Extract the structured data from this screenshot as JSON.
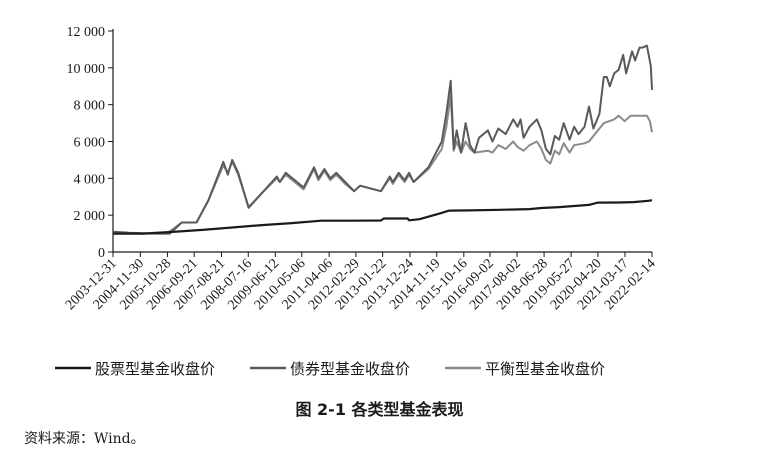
{
  "caption": "图 2-1   各类型基金表现",
  "source": "资料来源：Wind。",
  "chart_data": {
    "type": "line",
    "title": "",
    "xlabel": "",
    "ylabel": "",
    "ylim": [
      0,
      12000
    ],
    "yticks": [
      0,
      2000,
      4000,
      6000,
      8000,
      10000,
      12000
    ],
    "ytick_labels": [
      "0",
      "2 000",
      "4 000",
      "6 000",
      "8 000",
      "10 000",
      "12 000"
    ],
    "x_range": [
      2003.99,
      2022.12
    ],
    "xticks": [
      {
        "label": "2003-12-31",
        "x": 2003.99
      },
      {
        "label": "2004-11-30",
        "x": 2004.91
      },
      {
        "label": "2005-10-28",
        "x": 2005.82
      },
      {
        "label": "2006-09-21",
        "x": 2006.72
      },
      {
        "label": "2007-08-21",
        "x": 2007.64
      },
      {
        "label": "2008-07-16",
        "x": 2008.54
      },
      {
        "label": "2009-06-12",
        "x": 2009.45
      },
      {
        "label": "2010-05-06",
        "x": 2010.34
      },
      {
        "label": "2011-04-06",
        "x": 2011.26
      },
      {
        "label": "2012-02-29",
        "x": 2012.16
      },
      {
        "label": "2013-01-22",
        "x": 2013.06
      },
      {
        "label": "2013-12-24",
        "x": 2013.98
      },
      {
        "label": "2014-11-19",
        "x": 2014.88
      },
      {
        "label": "2015-10-16",
        "x": 2015.79
      },
      {
        "label": "2016-09-02",
        "x": 2016.67
      },
      {
        "label": "2017-08-02",
        "x": 2017.58
      },
      {
        "label": "2018-06-28",
        "x": 2018.49
      },
      {
        "label": "2019-05-27",
        "x": 2019.4
      },
      {
        "label": "2020-04-20",
        "x": 2020.3
      },
      {
        "label": "2021-03-17",
        "x": 2021.21
      },
      {
        "label": "2022-02-14",
        "x": 2022.12
      }
    ],
    "legend_position": "bottom",
    "grid": false,
    "series": [
      {
        "name": "股票型基金收盘价",
        "color": "#1a1a1a",
        "width": 2.2,
        "points": [
          [
            2003.99,
            1000
          ],
          [
            2005.0,
            1000
          ],
          [
            2006.0,
            1090
          ],
          [
            2007.0,
            1200
          ],
          [
            2008.0,
            1330
          ],
          [
            2009.0,
            1460
          ],
          [
            2010.0,
            1570
          ],
          [
            2011.0,
            1700
          ],
          [
            2012.0,
            1700
          ],
          [
            2013.0,
            1710
          ],
          [
            2013.1,
            1820
          ],
          [
            2013.9,
            1820
          ],
          [
            2013.95,
            1720
          ],
          [
            2014.3,
            1780
          ],
          [
            2015.0,
            2100
          ],
          [
            2015.3,
            2250
          ],
          [
            2016.0,
            2260
          ],
          [
            2017.0,
            2290
          ],
          [
            2018.0,
            2330
          ],
          [
            2018.4,
            2390
          ],
          [
            2019.0,
            2440
          ],
          [
            2019.5,
            2500
          ],
          [
            2020.0,
            2560
          ],
          [
            2020.3,
            2680
          ],
          [
            2021.0,
            2690
          ],
          [
            2021.5,
            2710
          ],
          [
            2022.0,
            2780
          ],
          [
            2022.12,
            2810
          ]
        ]
      },
      {
        "name": "债券型基金收盘价",
        "color": "#5a5a5a",
        "width": 2.0,
        "points": [
          [
            2003.99,
            1100
          ],
          [
            2004.5,
            1050
          ],
          [
            2005.5,
            1000
          ],
          [
            2005.9,
            1000
          ],
          [
            2006.3,
            1600
          ],
          [
            2006.8,
            1600
          ],
          [
            2007.2,
            2800
          ],
          [
            2007.7,
            4900
          ],
          [
            2007.85,
            4200
          ],
          [
            2008.0,
            5000
          ],
          [
            2008.2,
            4300
          ],
          [
            2008.55,
            2400
          ],
          [
            2009.0,
            3200
          ],
          [
            2009.5,
            4100
          ],
          [
            2009.6,
            3800
          ],
          [
            2009.8,
            4300
          ],
          [
            2010.4,
            3500
          ],
          [
            2010.75,
            4600
          ],
          [
            2010.9,
            4000
          ],
          [
            2011.1,
            4500
          ],
          [
            2011.3,
            4000
          ],
          [
            2011.5,
            4300
          ],
          [
            2011.8,
            3800
          ],
          [
            2012.1,
            3300
          ],
          [
            2012.3,
            3600
          ],
          [
            2013.0,
            3300
          ],
          [
            2013.3,
            4100
          ],
          [
            2013.4,
            3800
          ],
          [
            2013.6,
            4300
          ],
          [
            2013.8,
            3900
          ],
          [
            2013.95,
            4300
          ],
          [
            2014.1,
            3800
          ],
          [
            2014.6,
            4600
          ],
          [
            2015.05,
            6000
          ],
          [
            2015.2,
            7500
          ],
          [
            2015.35,
            9300
          ],
          [
            2015.45,
            5600
          ],
          [
            2015.55,
            6600
          ],
          [
            2015.7,
            5400
          ],
          [
            2015.85,
            7000
          ],
          [
            2016.0,
            5800
          ],
          [
            2016.15,
            5400
          ],
          [
            2016.3,
            6200
          ],
          [
            2016.6,
            6600
          ],
          [
            2016.75,
            6000
          ],
          [
            2016.95,
            6700
          ],
          [
            2017.2,
            6400
          ],
          [
            2017.45,
            7200
          ],
          [
            2017.6,
            6800
          ],
          [
            2017.7,
            7200
          ],
          [
            2017.8,
            6200
          ],
          [
            2018.0,
            6800
          ],
          [
            2018.25,
            7200
          ],
          [
            2018.4,
            6600
          ],
          [
            2018.55,
            5600
          ],
          [
            2018.7,
            5300
          ],
          [
            2018.85,
            6300
          ],
          [
            2019.0,
            6100
          ],
          [
            2019.15,
            7000
          ],
          [
            2019.35,
            6100
          ],
          [
            2019.5,
            6800
          ],
          [
            2019.65,
            6400
          ],
          [
            2019.85,
            6800
          ],
          [
            2020.0,
            7900
          ],
          [
            2020.15,
            6700
          ],
          [
            2020.35,
            7500
          ],
          [
            2020.5,
            9500
          ],
          [
            2020.6,
            9500
          ],
          [
            2020.7,
            9000
          ],
          [
            2020.85,
            9700
          ],
          [
            2021.0,
            9900
          ],
          [
            2021.15,
            10700
          ],
          [
            2021.25,
            9700
          ],
          [
            2021.45,
            10900
          ],
          [
            2021.55,
            10400
          ],
          [
            2021.7,
            11100
          ],
          [
            2021.8,
            11100
          ],
          [
            2021.95,
            11200
          ],
          [
            2022.08,
            10100
          ],
          [
            2022.12,
            8800
          ]
        ]
      },
      {
        "name": "平衡型基金收盘价",
        "color": "#8a8a8a",
        "width": 2.0,
        "points": [
          [
            2003.99,
            1050
          ],
          [
            2005.0,
            1000
          ],
          [
            2005.8,
            1000
          ],
          [
            2006.3,
            1600
          ],
          [
            2006.8,
            1600
          ],
          [
            2007.2,
            2800
          ],
          [
            2007.7,
            4700
          ],
          [
            2007.85,
            4300
          ],
          [
            2008.0,
            4900
          ],
          [
            2008.2,
            4200
          ],
          [
            2008.55,
            2450
          ],
          [
            2009.0,
            3200
          ],
          [
            2009.5,
            4000
          ],
          [
            2009.6,
            3800
          ],
          [
            2009.8,
            4200
          ],
          [
            2010.4,
            3400
          ],
          [
            2010.75,
            4500
          ],
          [
            2010.9,
            3900
          ],
          [
            2011.1,
            4400
          ],
          [
            2011.3,
            3900
          ],
          [
            2011.5,
            4200
          ],
          [
            2011.8,
            3700
          ],
          [
            2012.1,
            3300
          ],
          [
            2012.3,
            3600
          ],
          [
            2013.0,
            3300
          ],
          [
            2013.3,
            4000
          ],
          [
            2013.4,
            3700
          ],
          [
            2013.6,
            4200
          ],
          [
            2013.8,
            3800
          ],
          [
            2013.95,
            4200
          ],
          [
            2014.1,
            3800
          ],
          [
            2014.6,
            4500
          ],
          [
            2015.05,
            5600
          ],
          [
            2015.2,
            6800
          ],
          [
            2015.35,
            8500
          ],
          [
            2015.45,
            5500
          ],
          [
            2015.55,
            6000
          ],
          [
            2015.7,
            5400
          ],
          [
            2015.85,
            6000
          ],
          [
            2016.0,
            5600
          ],
          [
            2016.15,
            5400
          ],
          [
            2016.6,
            5500
          ],
          [
            2016.75,
            5400
          ],
          [
            2016.95,
            5800
          ],
          [
            2017.2,
            5600
          ],
          [
            2017.45,
            6000
          ],
          [
            2017.6,
            5700
          ],
          [
            2017.8,
            5500
          ],
          [
            2018.0,
            5800
          ],
          [
            2018.25,
            6000
          ],
          [
            2018.4,
            5600
          ],
          [
            2018.55,
            5000
          ],
          [
            2018.7,
            4800
          ],
          [
            2018.85,
            5500
          ],
          [
            2019.0,
            5300
          ],
          [
            2019.15,
            5900
          ],
          [
            2019.35,
            5400
          ],
          [
            2019.5,
            5800
          ],
          [
            2019.85,
            5900
          ],
          [
            2020.0,
            6000
          ],
          [
            2020.3,
            6600
          ],
          [
            2020.5,
            7000
          ],
          [
            2020.85,
            7200
          ],
          [
            2021.0,
            7400
          ],
          [
            2021.2,
            7100
          ],
          [
            2021.4,
            7400
          ],
          [
            2021.7,
            7400
          ],
          [
            2021.95,
            7400
          ],
          [
            2022.05,
            7100
          ],
          [
            2022.12,
            6500
          ]
        ]
      }
    ]
  }
}
